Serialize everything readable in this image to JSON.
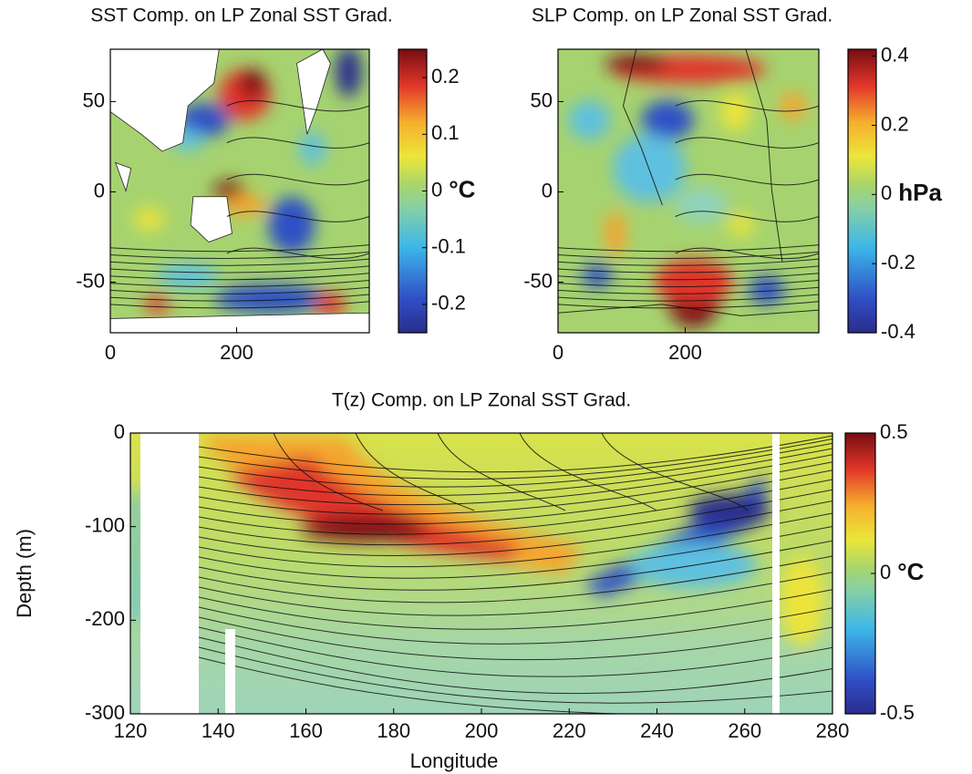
{
  "chart_data": [
    {
      "type": "map",
      "title": "SST Comp. on LP Zonal SST Grad.",
      "xlim": [
        0,
        410
      ],
      "xticks": [
        0,
        200
      ],
      "ylim": [
        -78,
        79
      ],
      "yticks": [
        -50,
        0,
        50
      ],
      "colorbar": {
        "lim": [
          -0.25,
          0.25
        ],
        "ticks": [
          -0.2,
          -0.1,
          0,
          0.1,
          0.2
        ],
        "unit": "°C"
      }
    },
    {
      "type": "map",
      "title": "SLP Comp. on LP Zonal SST Grad.",
      "xlim": [
        0,
        410
      ],
      "xticks": [
        0,
        200
      ],
      "ylim": [
        -78,
        79
      ],
      "yticks": [
        -50,
        0,
        50
      ],
      "colorbar": {
        "lim": [
          -0.4,
          0.42
        ],
        "ticks": [
          -0.4,
          -0.2,
          0,
          0.2,
          0.4
        ],
        "unit": "hPa"
      }
    },
    {
      "type": "section",
      "title": "T(z) Comp. on LP Zonal SST Grad.",
      "x_label": "Longitude",
      "y_label": "Depth (m)",
      "xlim": [
        120,
        280
      ],
      "xticks": [
        120,
        140,
        160,
        180,
        200,
        220,
        240,
        260,
        280
      ],
      "ylim": [
        -300,
        0
      ],
      "yticks": [
        -300,
        -200,
        -100,
        0
      ],
      "colorbar": {
        "lim": [
          -0.5,
          0.5
        ],
        "ticks": [
          -0.5,
          0,
          0.5
        ],
        "unit": "°C"
      }
    }
  ]
}
